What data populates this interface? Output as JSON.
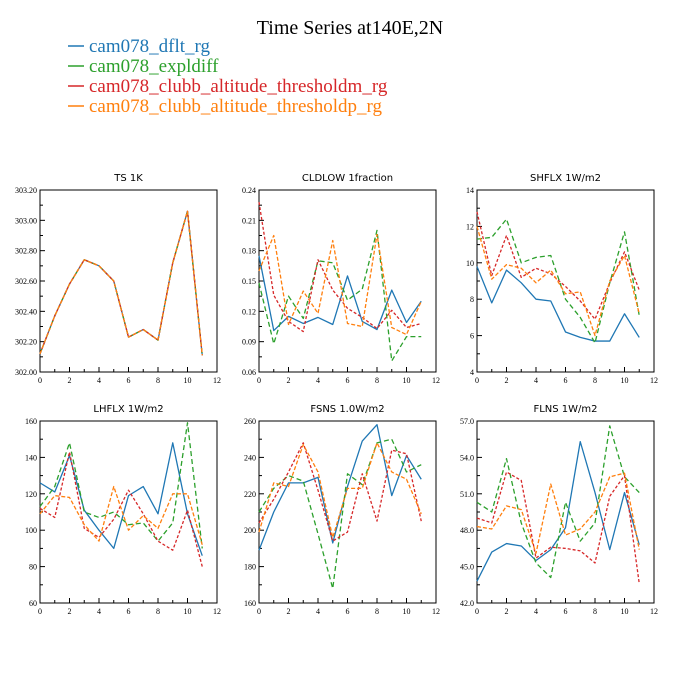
{
  "figure": {
    "title": "Time Series at140E,2N",
    "legend": [
      {
        "label": "cam078_dflt_rg",
        "color": "#1f77b4"
      },
      {
        "label": "cam078_expldiff",
        "color": "#2ca02c"
      },
      {
        "label": "cam078_clubb_altitude_thresholdm_rg",
        "color": "#d62728"
      },
      {
        "label": "cam078_clubb_altitude_thresholdp_rg",
        "color": "#ff7f0e"
      }
    ]
  },
  "chart_data": [
    {
      "type": "line",
      "title": "TS   1K",
      "xlim": [
        0,
        12
      ],
      "xticks": [
        "0",
        "2",
        "4",
        "6",
        "8",
        "10",
        "12"
      ],
      "ylim": [
        302.0,
        303.2
      ],
      "yticks": [
        "302.00",
        "302.20",
        "302.40",
        "302.60",
        "302.80",
        "303.00",
        "303.20"
      ],
      "x": [
        0,
        1,
        2,
        3,
        4,
        5,
        6,
        7,
        8,
        9,
        10,
        11
      ],
      "series": [
        {
          "name": "cam078_dflt_rg",
          "values": [
            302.12,
            302.37,
            302.58,
            302.74,
            302.7,
            302.6,
            302.23,
            302.28,
            302.21,
            302.72,
            303.06,
            302.11
          ]
        },
        {
          "name": "cam078_expldiff",
          "values": [
            302.12,
            302.37,
            302.58,
            302.74,
            302.7,
            302.6,
            302.23,
            302.28,
            302.21,
            302.72,
            303.06,
            302.11
          ]
        },
        {
          "name": "cam078_clubb_altitude_thresholdm_rg",
          "values": [
            302.12,
            302.37,
            302.58,
            302.74,
            302.7,
            302.6,
            302.23,
            302.28,
            302.21,
            302.72,
            303.06,
            302.11
          ]
        },
        {
          "name": "cam078_clubb_altitude_thresholdp_rg",
          "values": [
            302.12,
            302.37,
            302.58,
            302.74,
            302.7,
            302.6,
            302.23,
            302.28,
            302.21,
            302.72,
            303.06,
            302.11
          ]
        }
      ]
    },
    {
      "type": "line",
      "title": "CLDLOW   1fraction",
      "xlim": [
        0,
        12
      ],
      "xticks": [
        "0",
        "2",
        "4",
        "6",
        "8",
        "10",
        "12"
      ],
      "ylim": [
        0.06,
        0.24
      ],
      "yticks": [
        "0.06",
        "0.09",
        "0.12",
        "0.15",
        "0.18",
        "0.21",
        "0.24"
      ],
      "x": [
        0,
        1,
        2,
        3,
        4,
        5,
        6,
        7,
        8,
        9,
        10,
        11
      ],
      "series": [
        {
          "name": "cam078_dflt_rg",
          "values": [
            0.175,
            0.101,
            0.115,
            0.108,
            0.114,
            0.107,
            0.155,
            0.11,
            0.102,
            0.141,
            0.109,
            0.13
          ]
        },
        {
          "name": "cam078_expldiff",
          "values": [
            0.148,
            0.088,
            0.135,
            0.113,
            0.17,
            0.168,
            0.131,
            0.142,
            0.2,
            0.071,
            0.095,
            0.095
          ]
        },
        {
          "name": "cam078_clubb_altitude_thresholdm_rg",
          "values": [
            0.228,
            0.136,
            0.11,
            0.1,
            0.171,
            0.141,
            0.123,
            0.114,
            0.103,
            0.121,
            0.104,
            0.108
          ]
        },
        {
          "name": "cam078_clubb_altitude_thresholdp_rg",
          "values": [
            0.16,
            0.195,
            0.107,
            0.14,
            0.118,
            0.19,
            0.108,
            0.105,
            0.196,
            0.104,
            0.097,
            0.13
          ]
        }
      ]
    },
    {
      "type": "line",
      "title": "SHFLX   1W/m2",
      "xlim": [
        0,
        12
      ],
      "xticks": [
        "0",
        "2",
        "4",
        "6",
        "8",
        "10",
        "12"
      ],
      "ylim": [
        4,
        14
      ],
      "yticks": [
        "4",
        "6",
        "8",
        "10",
        "12",
        "14"
      ],
      "x": [
        0,
        1,
        2,
        3,
        4,
        5,
        6,
        7,
        8,
        9,
        10,
        11
      ],
      "series": [
        {
          "name": "cam078_dflt_rg",
          "values": [
            9.8,
            7.8,
            9.6,
            8.9,
            8.0,
            7.9,
            6.2,
            5.9,
            5.7,
            5.7,
            7.2,
            5.9
          ]
        },
        {
          "name": "cam078_expldiff",
          "values": [
            11.3,
            11.4,
            12.4,
            10.0,
            10.3,
            10.4,
            8.0,
            7.0,
            5.6,
            8.9,
            11.7,
            7.1
          ]
        },
        {
          "name": "cam078_clubb_altitude_thresholdm_rg",
          "values": [
            12.8,
            9.3,
            11.5,
            9.2,
            9.7,
            9.4,
            8.7,
            7.9,
            6.9,
            8.9,
            10.6,
            8.5
          ]
        },
        {
          "name": "cam078_clubb_altitude_thresholdp_rg",
          "values": [
            12.0,
            9.1,
            9.9,
            9.7,
            8.9,
            9.6,
            8.3,
            8.4,
            6.0,
            9.0,
            10.4,
            7.2
          ]
        }
      ]
    },
    {
      "type": "line",
      "title": "LHFLX   1W/m2",
      "xlim": [
        0,
        12
      ],
      "xticks": [
        "0",
        "2",
        "4",
        "6",
        "8",
        "10",
        "12"
      ],
      "ylim": [
        60,
        160
      ],
      "yticks": [
        "60",
        "80",
        "100",
        "120",
        "140",
        "160"
      ],
      "x": [
        0,
        1,
        2,
        3,
        4,
        5,
        6,
        7,
        8,
        9,
        10,
        11
      ],
      "series": [
        {
          "name": "cam078_dflt_rg",
          "values": [
            126,
            121,
            141,
            111,
            100,
            90,
            119,
            124,
            109,
            148,
            109,
            86
          ]
        },
        {
          "name": "cam078_expldiff",
          "values": [
            113,
            124,
            148,
            110,
            107,
            110,
            103,
            104,
            94,
            104,
            159,
            90
          ]
        },
        {
          "name": "cam078_clubb_altitude_thresholdm_rg",
          "values": [
            112,
            107,
            143,
            101,
            96,
            106,
            122,
            109,
            94,
            89,
            111,
            80
          ]
        },
        {
          "name": "cam078_clubb_altitude_thresholdp_rg",
          "values": [
            109,
            119,
            118,
            103,
            94,
            124,
            100,
            108,
            101,
            120,
            120,
            92
          ]
        }
      ]
    },
    {
      "type": "line",
      "title": "FSNS   1.0W/m2",
      "xlim": [
        0,
        12
      ],
      "xticks": [
        "0",
        "2",
        "4",
        "6",
        "8",
        "10",
        "12"
      ],
      "ylim": [
        160,
        260
      ],
      "yticks": [
        "160",
        "180",
        "200",
        "220",
        "240",
        "260"
      ],
      "x": [
        0,
        1,
        2,
        3,
        4,
        5,
        6,
        7,
        8,
        9,
        10,
        11
      ],
      "series": [
        {
          "name": "cam078_dflt_rg",
          "values": [
            189,
            210,
            226,
            226,
            229,
            193,
            224,
            249,
            258,
            219,
            241,
            228
          ]
        },
        {
          "name": "cam078_expldiff",
          "values": [
            210,
            223,
            230,
            227,
            198,
            168,
            231,
            225,
            248,
            250,
            232,
            236
          ]
        },
        {
          "name": "cam078_clubb_altitude_thresholdm_rg",
          "values": [
            204,
            217,
            232,
            248,
            222,
            194,
            199,
            231,
            205,
            244,
            242,
            205
          ]
        },
        {
          "name": "cam078_clubb_altitude_thresholdp_rg",
          "values": [
            199,
            226,
            224,
            247,
            232,
            196,
            223,
            223,
            248,
            232,
            228,
            209
          ]
        }
      ]
    },
    {
      "type": "line",
      "title": "FLNS   1W/m2",
      "xlim": [
        0,
        12
      ],
      "xticks": [
        "0",
        "2",
        "4",
        "6",
        "8",
        "10",
        "12"
      ],
      "ylim": [
        42.0,
        57.0
      ],
      "yticks": [
        "42.0",
        "45.0",
        "48.0",
        "51.0",
        "54.0",
        "57.0"
      ],
      "x": [
        0,
        1,
        2,
        3,
        4,
        5,
        6,
        7,
        8,
        9,
        10,
        11
      ],
      "series": [
        {
          "name": "cam078_dflt_rg",
          "values": [
            43.8,
            46.2,
            46.9,
            46.7,
            45.5,
            46.4,
            48.2,
            55.3,
            51.1,
            46.4,
            51.1,
            46.8
          ]
        },
        {
          "name": "cam078_expldiff",
          "values": [
            50.3,
            49.5,
            53.9,
            48.6,
            45.3,
            44.1,
            50.3,
            47.1,
            48.6,
            56.6,
            52.4,
            51.1
          ]
        },
        {
          "name": "cam078_clubb_altitude_thresholdm_rg",
          "values": [
            49.0,
            48.6,
            52.8,
            52.1,
            45.7,
            46.6,
            46.5,
            46.3,
            45.3,
            50.8,
            52.5,
            43.6
          ]
        },
        {
          "name": "cam078_clubb_altitude_thresholdp_rg",
          "values": [
            48.3,
            48.1,
            50.0,
            49.7,
            46.1,
            51.8,
            47.6,
            48.1,
            49.5,
            52.4,
            52.7,
            46.4
          ]
        }
      ]
    }
  ]
}
